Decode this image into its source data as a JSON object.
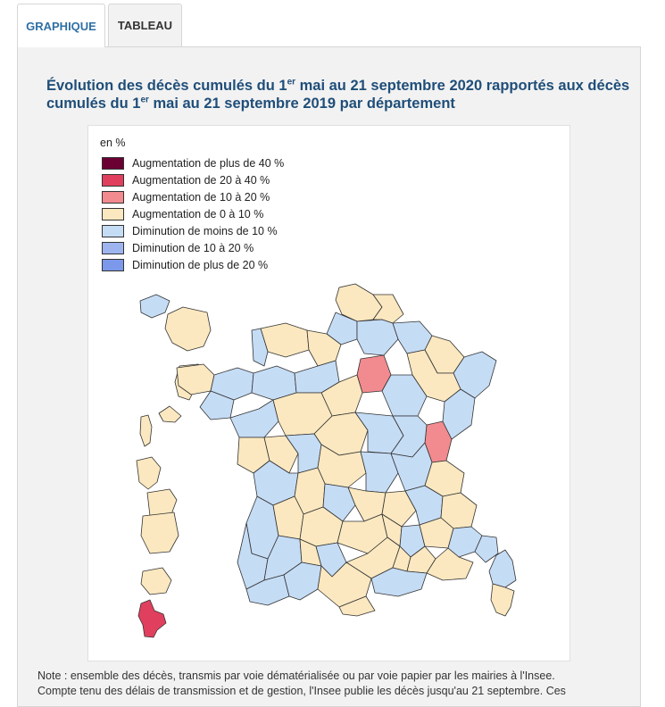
{
  "tabs": [
    {
      "label": "GRAPHIQUE",
      "active": true
    },
    {
      "label": "TABLEAU",
      "active": false
    }
  ],
  "title": {
    "part1": "Évolution des décès cumulés du 1",
    "sup1": "er",
    "part2": " mai au 21 septembre 2020 rapportés aux décès cumulés du 1",
    "sup2": "er",
    "part3": " mai au 21 septembre 2019 par département"
  },
  "legend": {
    "unit": "en %",
    "items": [
      {
        "label": "Augmentation de plus de 40 %",
        "color": "#6b0033"
      },
      {
        "label": "Augmentation de 20 à 40 %",
        "color": "#e0405e"
      },
      {
        "label": "Augmentation de 10 à 20 %",
        "color": "#f28b8f"
      },
      {
        "label": "Augmentation de 0 à 10 %",
        "color": "#fbe8c0"
      },
      {
        "label": "Diminution de moins de 10 %",
        "color": "#c5dcf5"
      },
      {
        "label": "Diminution de 10 à 20 %",
        "color": "#9db4ef"
      },
      {
        "label": "Diminution de plus de 20 %",
        "color": "#7c98ea"
      }
    ]
  },
  "map_data": {
    "type": "choropleth",
    "highlighted_regions": [
      {
        "region": "Paris-east department",
        "category": "Augmentation de 10 à 20 %"
      },
      {
        "region": "Haute-Saône / Doubs area",
        "category": "Augmentation de 10 à 20 %"
      },
      {
        "region": "Mayotte (overseas)",
        "category": "Augmentation de 20 à 40 %"
      }
    ]
  },
  "note": {
    "line1": "Note : ensemble des décès, transmis par voie dématérialisée ou par voie papier par les mairies à l'Insee.",
    "line2": "Compte tenu des délais de transmission et de gestion, l'Insee publie les décès jusqu'au 21 septembre. Ces"
  }
}
